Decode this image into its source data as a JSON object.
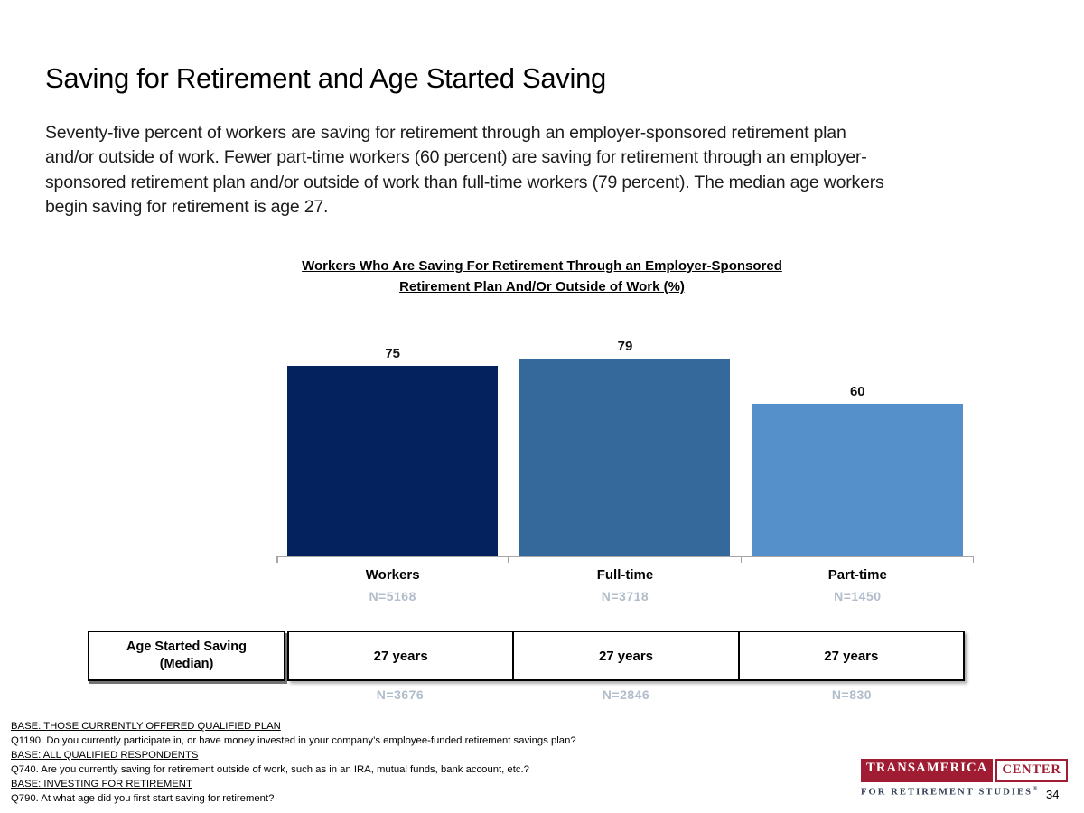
{
  "slide": {
    "title": "Saving for Retirement and Age Started Saving",
    "body_paragraph": "Seventy-five percent of workers are saving for retirement through an employer-sponsored retirement plan\nand/or outside of work. Fewer part-time workers (60 percent) are saving for retirement through an employer-\nsponsored retirement plan and/or outside of work than full-time workers (79 percent). The median age workers\nbegin saving for retirement is age 27.",
    "page_number": "34"
  },
  "chart_data": {
    "type": "bar",
    "title": "Workers Who Are Saving For Retirement Through an Employer-Sponsored\nRetirement Plan And/Or Outside of Work (%)",
    "categories": [
      "Workers",
      "Full-time",
      "Part-time"
    ],
    "values": [
      75,
      79,
      60
    ],
    "sample_sizes": [
      "N=5168",
      "N=3718",
      "N=1450"
    ],
    "bar_colors": [
      "#04225E",
      "#36699B",
      "#5590CB"
    ],
    "ylim": [
      0,
      85
    ],
    "value_labels_shown": true,
    "legend": "none",
    "grid": "off",
    "axis_color": "#A6A6A6"
  },
  "median_table": {
    "header": "Age Started Saving\n(Median)",
    "cells": [
      {
        "value": "27 years",
        "n": "N=3676"
      },
      {
        "value": "27 years",
        "n": "N=2846"
      },
      {
        "value": "27 years",
        "n": "N=830"
      }
    ]
  },
  "footnotes": {
    "lines": [
      {
        "text": "BASE: THOSE CURRENTLY OFFERED QUALIFIED PLAN",
        "underlined": true
      },
      {
        "text": "Q1190. Do you currently participate in, or have money invested in your company’s employee-funded retirement savings plan?",
        "underlined": false
      },
      {
        "text": "BASE: ALL QUALIFIED RESPONDENTS",
        "underlined": true
      },
      {
        "text": "Q740. Are you currently saving for retirement outside of work, such as in an IRA, mutual funds, bank account, etc.?",
        "underlined": false
      },
      {
        "text": "BASE: INVESTING FOR RETIREMENT",
        "underlined": true
      },
      {
        "text": "Q790. At what age did you first start saving for retirement?",
        "underlined": false
      }
    ]
  },
  "logo": {
    "brand": "TRANSAMERICA",
    "brand_box": "CENTER",
    "tagline": "FOR RETIREMENT STUDIES",
    "registered_mark": "®",
    "brand_color": "#A01C33",
    "tagline_color": "#333E55"
  }
}
